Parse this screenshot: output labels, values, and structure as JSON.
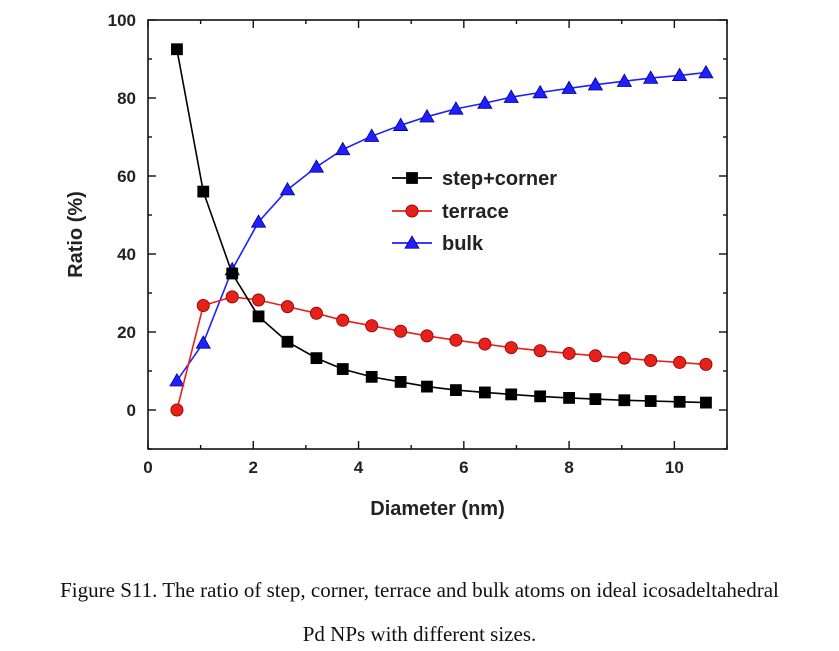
{
  "chart_data": {
    "type": "line",
    "xlabel": "Diameter (nm)",
    "ylabel": "Ratio (%)",
    "xlim": [
      0,
      11
    ],
    "ylim": [
      -10,
      100
    ],
    "xticks": [
      "0",
      "2",
      "4",
      "6",
      "8",
      "10"
    ],
    "yticks": [
      "0",
      "20",
      "40",
      "60",
      "80",
      "100"
    ],
    "legend_position": "center-right",
    "x": [
      0.55,
      1.05,
      1.6,
      2.1,
      2.65,
      3.2,
      3.7,
      4.25,
      4.8,
      5.3,
      5.85,
      6.4,
      6.9,
      7.45,
      8.0,
      8.5,
      9.05,
      9.55,
      10.1,
      10.6
    ],
    "series": [
      {
        "name": "step+corner",
        "color": "#000000",
        "marker": "square",
        "values": [
          92.5,
          56,
          35,
          24,
          17.5,
          13.3,
          10.5,
          8.5,
          7.2,
          6.0,
          5.1,
          4.5,
          4.0,
          3.5,
          3.1,
          2.8,
          2.5,
          2.3,
          2.1,
          1.9
        ]
      },
      {
        "name": "terrace",
        "color": "#e8201a",
        "marker": "circle",
        "values": [
          0,
          26.8,
          29,
          28.2,
          26.5,
          24.8,
          23,
          21.6,
          20.2,
          19,
          17.9,
          16.9,
          16,
          15.2,
          14.5,
          13.9,
          13.3,
          12.7,
          12.2,
          11.7
        ]
      },
      {
        "name": "bulk",
        "color": "#1f1fff",
        "marker": "triangle",
        "values": [
          7.5,
          17.2,
          36,
          48.2,
          56.5,
          62.3,
          66.8,
          70.2,
          73,
          75.2,
          77.2,
          78.7,
          80.2,
          81.4,
          82.5,
          83.4,
          84.3,
          85.1,
          85.8,
          86.5
        ]
      }
    ]
  },
  "caption": {
    "line1": "Figure S11. The ratio of step, corner, terrace and bulk atoms on ideal icosadeltahedral",
    "line2": "Pd NPs with different sizes."
  }
}
